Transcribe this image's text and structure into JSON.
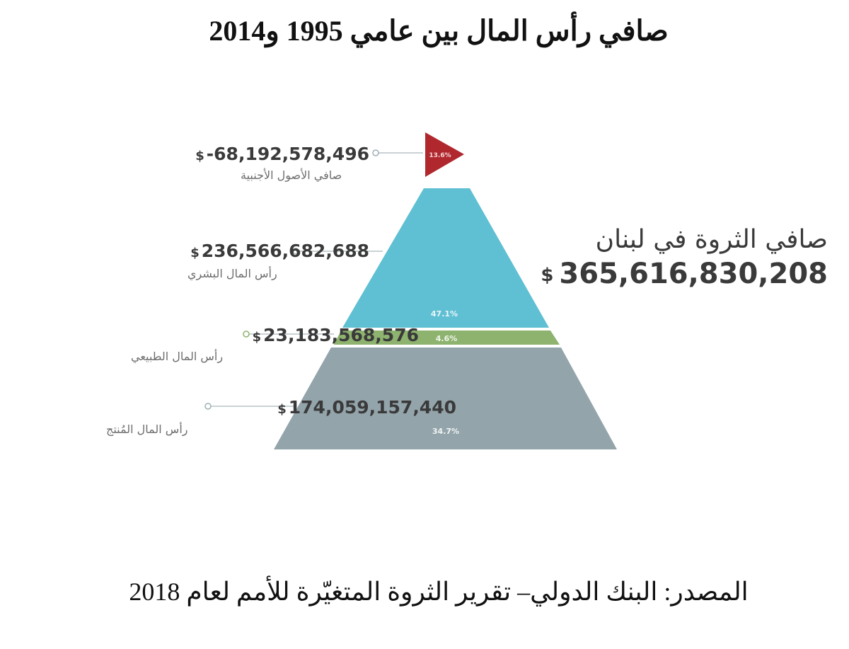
{
  "title": "صافي رأس المال بين عامي 1995 و2014",
  "source": "المصدر: البنك الدولي– تقرير الثروة المتغيّرة للأمم لعام 2018",
  "total": {
    "label": "صافي الثروة في لبنان",
    "currency": "$",
    "value": "365,616,830,208"
  },
  "chart_data": {
    "type": "pyramid",
    "unit": "USD",
    "total": 365616830208,
    "components": [
      {
        "name": "صافي الأصول الأجنبية",
        "value": -68192578496,
        "value_label": "-68,192,578,496",
        "share_label": "13.6%",
        "color": "#b0282e"
      },
      {
        "name": "رأس المال البشري",
        "value": 236566682688,
        "value_label": "236,566,682,688",
        "share_label": "47.1%",
        "color": "#5fbfd3"
      },
      {
        "name": "رأس المال الطبيعي",
        "value": 23183568576,
        "value_label": "23,183,568,576",
        "share_label": "4.6%",
        "color": "#8db36e"
      },
      {
        "name": "رأس المال المُنتج",
        "value": 174059157440,
        "value_label": "174,059,157,440",
        "share_label": "34.7%",
        "color": "#93a4ab"
      }
    ]
  },
  "currency_symbol": "$"
}
